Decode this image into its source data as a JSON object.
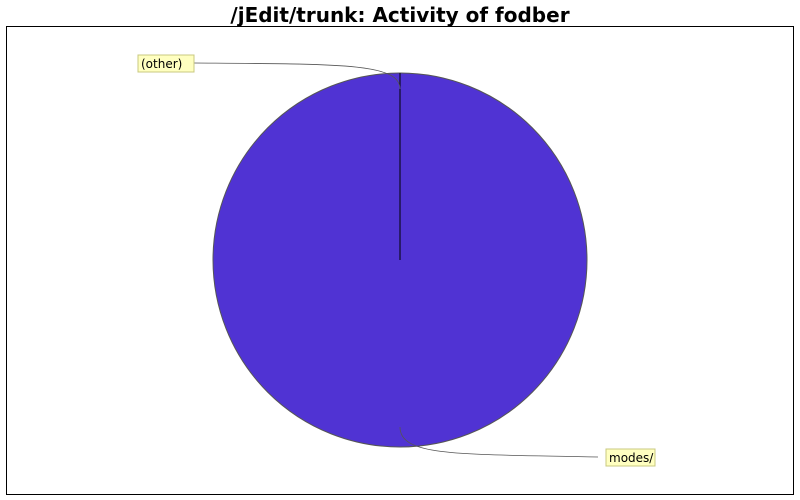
{
  "chart_data": {
    "type": "pie",
    "title": "/jEdit/trunk: Activity of fodber",
    "slices": [
      {
        "label": "modes/",
        "value": 100.0,
        "color": "#5033d3"
      },
      {
        "label": "(other)",
        "value": 0.0,
        "color": "#ff5555"
      }
    ],
    "legend": "none",
    "label_style": {
      "box_fill": "#ffffc0",
      "box_stroke": "#c8c880"
    }
  }
}
